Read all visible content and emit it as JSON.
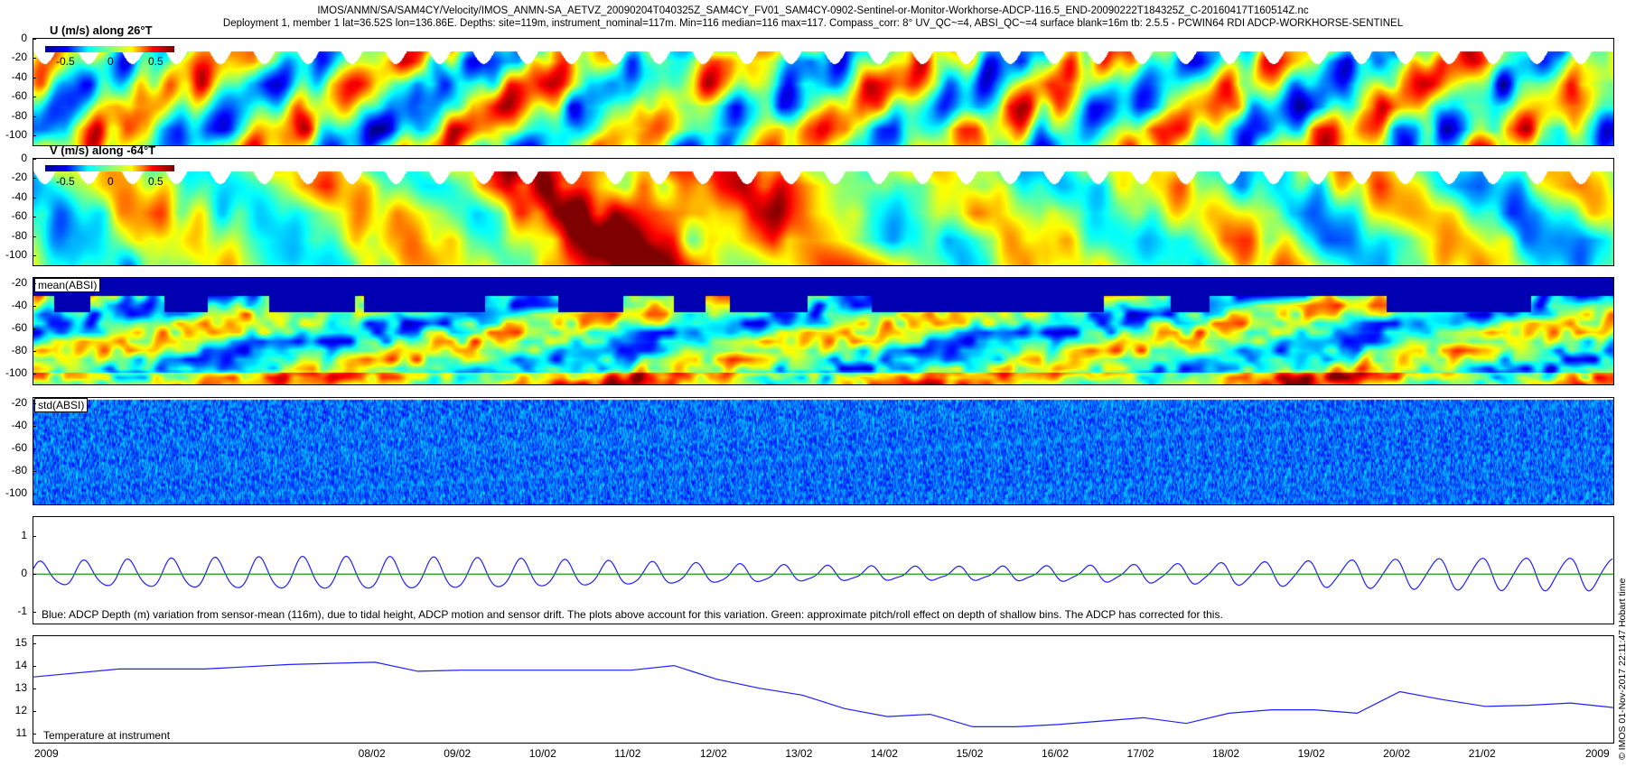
{
  "header": {
    "line1": "IMOS/ANMN/SA/SAM4CY/Velocity/IMOS_ANMN-SA_AETVZ_20090204T040325Z_SAM4CY_FV01_SAM4CY-0902-Sentinel-or-Monitor-Workhorse-ADCP-116.5_END-20090222T184325Z_C-20160417T160514Z.nc",
    "line2": "Deployment 1, member 1 lat=36.52S lon=136.86E. Depths: site=119m, instrument_nominal=117m. Min=116 median=116 max=117. Compass_corr: 8° UV_QC~=4, ABSI_QC~=4 surface blank=16m tb: 2.5.5 - PCWIN64 RDI ADCP-WORKHORSE-SENTINEL"
  },
  "side_note": "© IMOS 01-Nov-2017 22:11:47 Hobart time",
  "colors": {
    "line_blue": "#1f1fff",
    "line_green": "#1a9a1a"
  },
  "chart_data": [
    {
      "type": "heatmap",
      "title": "U (m/s) along 26°T",
      "colorbar_ticks": [
        "-0.5",
        "0",
        "0.5"
      ],
      "yticks": [
        "0",
        "-20",
        "-40",
        "-60",
        "-80",
        "-100"
      ],
      "ylim": [
        -110,
        0
      ],
      "colormap": "jet"
    },
    {
      "type": "heatmap",
      "title": "V (m/s) along -64°T",
      "colorbar_ticks": [
        "-0.5",
        "0",
        "0.5"
      ],
      "yticks": [
        "0",
        "-20",
        "-40",
        "-60",
        "-80",
        "-100"
      ],
      "ylim": [
        -110,
        0
      ],
      "colormap": "jet"
    },
    {
      "type": "heatmap",
      "title": "mean(ABSI)",
      "yticks": [
        "-20",
        "-40",
        "-60",
        "-80",
        "-100"
      ],
      "ylim": [
        -110,
        -15
      ],
      "colormap": "jet"
    },
    {
      "type": "heatmap",
      "title": "std(ABSI)",
      "yticks": [
        "-20",
        "-40",
        "-60",
        "-80",
        "-100"
      ],
      "ylim": [
        -110,
        -15
      ],
      "colormap": "jet"
    },
    {
      "type": "line",
      "yticks": [
        "1",
        "0",
        "-1"
      ],
      "ylim": [
        -1.3,
        1.5
      ],
      "caption": "Blue: ADCP Depth (m) variation from sensor-mean (116m), due to tidal height, ADCP motion and sensor drift. The plots above account for this variation. Green: approximate pitch/roll effect on depth of shallow bins. The ADCP has corrected for this.",
      "series": [
        {
          "color": "blue",
          "description": "semi-diurnal tidal oscillation, amplitude ~0.3-0.55 m"
        },
        {
          "color": "green",
          "description": "near-zero pitch/roll effect"
        }
      ]
    },
    {
      "type": "line",
      "label": "Temperature at instrument",
      "yticks": [
        "15",
        "14",
        "13",
        "12",
        "11"
      ],
      "ylim": [
        10.6,
        15.3
      ],
      "x": [
        "2009-02-04",
        "2009-02-05",
        "2009-02-06",
        "2009-02-07",
        "2009-02-07 12:00",
        "2009-02-08",
        "2009-02-08 12:00",
        "2009-02-09",
        "2009-02-10",
        "2009-02-11",
        "2009-02-11 12:00",
        "2009-02-12",
        "2009-02-12 12:00",
        "2009-02-13",
        "2009-02-13 12:00",
        "2009-02-14",
        "2009-02-14 12:00",
        "2009-02-15",
        "2009-02-15 12:00",
        "2009-02-16",
        "2009-02-16 12:00",
        "2009-02-17",
        "2009-02-17 12:00",
        "2009-02-18",
        "2009-02-18 12:00",
        "2009-02-19",
        "2009-02-19 12:00",
        "2009-02-20",
        "2009-02-20 12:00",
        "2009-02-21",
        "2009-02-21 12:00",
        "2009-02-22",
        "2009-02-22 12:00"
      ],
      "values": [
        13.5,
        13.85,
        13.85,
        14.05,
        14.1,
        14.15,
        13.75,
        13.8,
        13.8,
        13.8,
        14.0,
        13.4,
        13.0,
        12.7,
        12.1,
        11.75,
        11.85,
        11.3,
        11.3,
        11.4,
        11.55,
        11.7,
        11.45,
        11.9,
        12.05,
        12.05,
        11.9,
        12.85,
        12.5,
        12.2,
        12.25,
        12.35,
        12.15
      ]
    }
  ],
  "xaxis": {
    "x": [
      "2009-02-04",
      "2009-02-22 12:00"
    ],
    "ticks": [
      {
        "label": "2009",
        "date": "2009-02-04"
      },
      {
        "label": "08/02",
        "date": "2009-02-08"
      },
      {
        "label": "09/02",
        "date": "2009-02-09"
      },
      {
        "label": "10/02",
        "date": "2009-02-10"
      },
      {
        "label": "11/02",
        "date": "2009-02-11"
      },
      {
        "label": "12/02",
        "date": "2009-02-12"
      },
      {
        "label": "13/02",
        "date": "2009-02-13"
      },
      {
        "label": "14/02",
        "date": "2009-02-14"
      },
      {
        "label": "15/02",
        "date": "2009-02-15"
      },
      {
        "label": "16/02",
        "date": "2009-02-16"
      },
      {
        "label": "17/02",
        "date": "2009-02-17"
      },
      {
        "label": "18/02",
        "date": "2009-02-18"
      },
      {
        "label": "19/02",
        "date": "2009-02-19"
      },
      {
        "label": "20/02",
        "date": "2009-02-20"
      },
      {
        "label": "21/02",
        "date": "2009-02-21"
      },
      {
        "label": "2009",
        "date": "2009-02-22 12:00"
      }
    ]
  }
}
